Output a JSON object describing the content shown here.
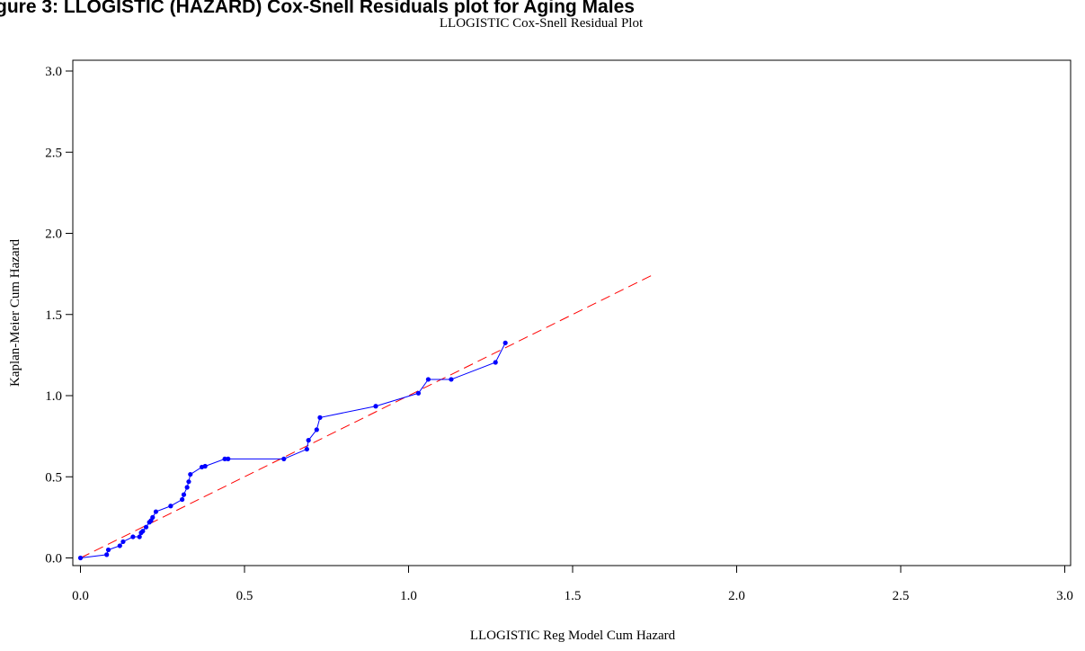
{
  "figure_header": "gure 3: LLOGISTIC (HAZARD) Cox-Snell Residuals plot for Aging Males",
  "chart_data": {
    "type": "line",
    "title": "LLOGISTIC Cox-Snell Residual Plot",
    "xlabel": "LLOGISTIC Reg Model Cum Hazard",
    "ylabel": "Kaplan-Meier Cum Hazard",
    "xlim": [
      0,
      3
    ],
    "ylim": [
      0,
      3
    ],
    "xticks": [
      "0.0",
      "0.5",
      "1.0",
      "1.5",
      "2.0",
      "2.5",
      "3.0"
    ],
    "yticks": [
      "0.0",
      "0.5",
      "1.0",
      "1.5",
      "2.0",
      "2.5",
      "3.0"
    ],
    "grid": false,
    "series": [
      {
        "color": "#0000ff",
        "style": "solid-with-markers",
        "x": [
          0.0,
          0.08,
          0.085,
          0.12,
          0.13,
          0.16,
          0.18,
          0.185,
          0.19,
          0.2,
          0.21,
          0.215,
          0.22,
          0.23,
          0.275,
          0.31,
          0.315,
          0.325,
          0.33,
          0.335,
          0.37,
          0.38,
          0.44,
          0.45,
          0.62,
          0.69,
          0.695,
          0.72,
          0.73,
          0.9,
          1.03,
          1.06,
          1.13,
          1.265,
          1.295
        ],
        "y": [
          0.0,
          0.02,
          0.05,
          0.075,
          0.1,
          0.13,
          0.13,
          0.155,
          0.165,
          0.19,
          0.22,
          0.23,
          0.25,
          0.285,
          0.32,
          0.36,
          0.39,
          0.435,
          0.47,
          0.515,
          0.56,
          0.565,
          0.61,
          0.61,
          0.61,
          0.67,
          0.725,
          0.79,
          0.865,
          0.935,
          1.015,
          1.1,
          1.1,
          1.205,
          1.325
        ]
      },
      {
        "color": "#ff0000",
        "style": "dashed",
        "x": [
          0.0,
          1.75
        ],
        "y": [
          0.0,
          1.75
        ]
      }
    ]
  }
}
